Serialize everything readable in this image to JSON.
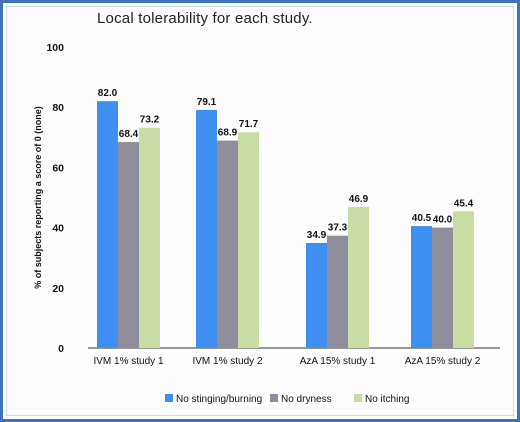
{
  "chart_data": {
    "type": "bar",
    "title": "Local tolerability for each study.",
    "ylabel": "% of subjects reporting a score of 0 (none)",
    "xlabel": "",
    "ylim": [
      0,
      100
    ],
    "yticks": [
      0,
      20,
      40,
      60,
      80,
      100
    ],
    "grid": false,
    "legend_position": "bottom",
    "categories": [
      "IVM 1% study 1",
      "IVM 1% study 2",
      "AzA 15% study 1",
      "AzA 15% study 2"
    ],
    "series": [
      {
        "name": "No stinging/burning",
        "color": "#3f8ff0",
        "values": [
          82.0,
          79.1,
          34.9,
          40.5
        ],
        "labels": [
          "82.0",
          "79.1",
          "34.9",
          "40.5"
        ]
      },
      {
        "name": "No dryness",
        "color": "#8f8c9c",
        "values": [
          68.4,
          68.9,
          37.3,
          40.0
        ],
        "labels": [
          "68.4",
          "68.9",
          "37.3",
          "40.0"
        ]
      },
      {
        "name": "No itching",
        "color": "#c8dca4",
        "values": [
          73.2,
          71.7,
          46.9,
          45.4
        ],
        "labels": [
          "73.2",
          "71.7",
          "46.9",
          "45.4"
        ]
      }
    ]
  },
  "colors": {
    "frame": "#3f74b6",
    "axis": "#333333"
  }
}
